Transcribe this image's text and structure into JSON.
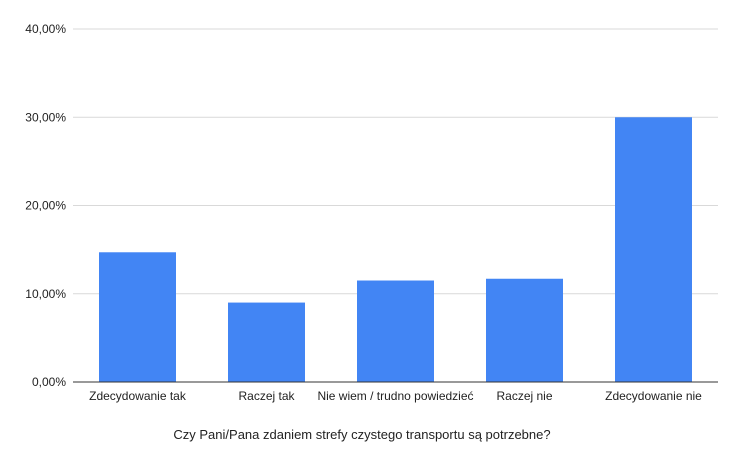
{
  "chart_data": {
    "type": "bar",
    "title": "",
    "xlabel": "Czy Pani/Pana zdaniem strefy czystego transportu są potrzebne?",
    "ylabel": "",
    "categories": [
      "Zdecydowanie tak",
      "Raczej tak",
      "Nie wiem / trudno powiedzieć",
      "Raczej nie",
      "Zdecydowanie nie"
    ],
    "values": [
      14.7,
      9.0,
      11.5,
      11.7,
      30.0
    ],
    "ylim": [
      0,
      40
    ],
    "yticks": [
      0,
      10,
      20,
      30,
      40
    ],
    "ytick_labels": [
      "0,00%",
      "10,00%",
      "20,00%",
      "30,00%",
      "40,00%"
    ],
    "grid": true,
    "legend": "none",
    "colors": {
      "bar": "#4285f4",
      "grid": "#d9d9d9",
      "axis": "#333333"
    }
  }
}
